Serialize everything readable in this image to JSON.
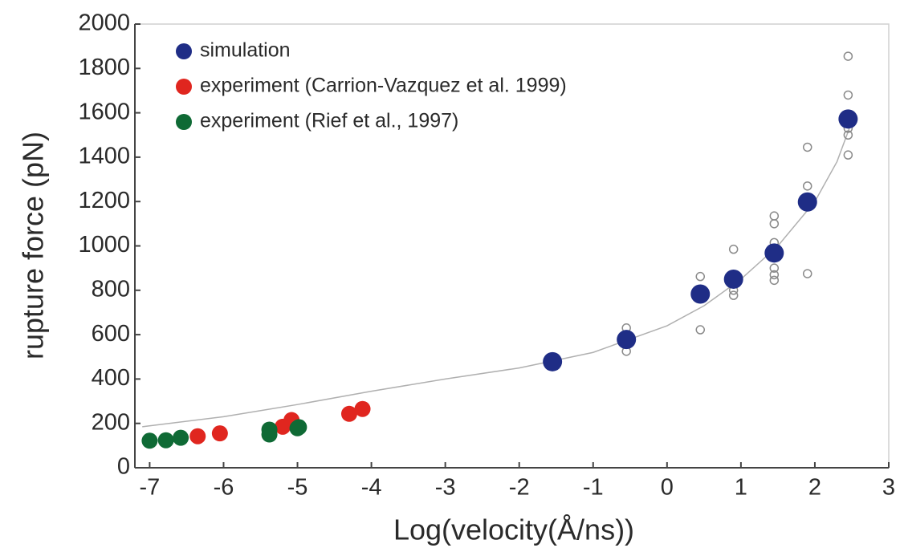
{
  "chart_data": {
    "type": "scatter",
    "xlabel": "Log(velocity(Å/ns))",
    "ylabel": "rupture force (pN)",
    "xlim": [
      -7.2,
      3
    ],
    "xticks": [
      -7,
      -6,
      -5,
      -4,
      -3,
      -2,
      -1,
      0,
      1,
      2,
      3
    ],
    "ylim": [
      0,
      2000
    ],
    "yticks": [
      0,
      200,
      400,
      600,
      800,
      1000,
      1200,
      1400,
      1600,
      1800,
      2000
    ],
    "legend": "upper left",
    "series": [
      {
        "name": "simulation",
        "color": "#1f2d86",
        "x": [
          -1.55,
          -0.55,
          0.45,
          0.9,
          1.45,
          1.9,
          2.45
        ],
        "values": [
          478,
          578,
          783,
          850,
          968,
          1198,
          1572
        ]
      },
      {
        "name": "experiment (Carrion-Vazquez et al. 1999)",
        "color": "#e0261f",
        "x": [
          -6.35,
          -6.05,
          -5.2,
          -5.08,
          -4.3,
          -4.12
        ],
        "values": [
          142,
          155,
          185,
          215,
          243,
          265
        ]
      },
      {
        "name": "experiment (Rief et al., 1997)",
        "color": "#0f6a35",
        "x": [
          -7.0,
          -6.78,
          -6.58,
          -5.38,
          -5.38,
          -5.0,
          -4.98
        ],
        "values": [
          122,
          124,
          135,
          150,
          172,
          178,
          183
        ]
      }
    ],
    "samples": {
      "color": "#8a8a8a",
      "x": [
        -0.55,
        -0.55,
        0.45,
        0.45,
        0.45,
        0.9,
        0.9,
        0.9,
        1.45,
        1.45,
        1.45,
        1.45,
        1.45,
        1.45,
        1.9,
        1.9,
        1.9,
        2.45,
        2.45,
        2.45,
        2.45,
        2.45
      ],
      "values": [
        630,
        525,
        862,
        622,
        800,
        985,
        777,
        800,
        1135,
        1100,
        1015,
        900,
        870,
        845,
        1445,
        1270,
        875,
        1855,
        1680,
        1530,
        1500,
        1410
      ]
    },
    "fit": {
      "color": "#b0b0b0",
      "x": [
        -7.1,
        -6,
        -5,
        -4,
        -3,
        -2,
        -1,
        0,
        0.5,
        1,
        1.5,
        2,
        2.3,
        2.5
      ],
      "values": [
        185,
        230,
        285,
        345,
        400,
        450,
        520,
        640,
        730,
        850,
        1000,
        1200,
        1380,
        1560
      ]
    }
  }
}
